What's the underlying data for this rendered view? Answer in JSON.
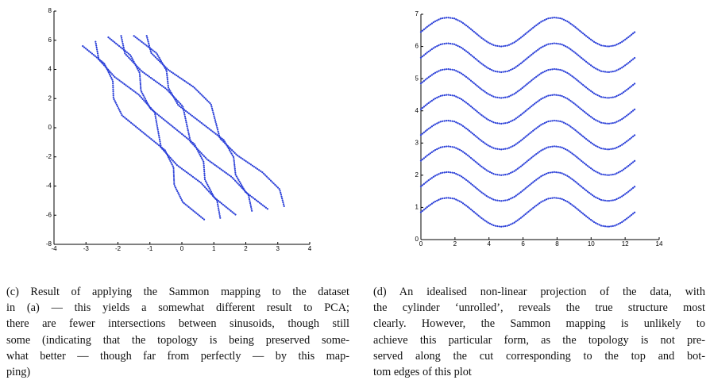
{
  "chart_data": [
    {
      "type": "line",
      "line_style": "dotted",
      "xlim": [
        -4,
        4
      ],
      "xticks": [
        -4,
        -3,
        -2,
        -1,
        0,
        1,
        2,
        3,
        4
      ],
      "ylim": [
        -8,
        8
      ],
      "yticks": [
        -8,
        -6,
        -4,
        -2,
        0,
        2,
        4,
        6,
        8
      ],
      "series": [
        {
          "color": "#2a3fd8",
          "x": [
            -3.1,
            -2.43,
            -2.16,
            -2.14,
            -1.87,
            -1.2,
            -0.53,
            -0.26,
            -0.24,
            0.03,
            0.7
          ],
          "values": [
            5.6,
            4.41,
            3.22,
            2.03,
            0.84,
            -0.35,
            -1.54,
            -2.73,
            -3.92,
            -5.11,
            -6.3
          ]
        },
        {
          "color": "#2a3fd8",
          "x": [
            -2.7,
            -2.6,
            -2.1,
            -1.35,
            -0.85,
            -0.75,
            -0.65,
            -0.15,
            0.6,
            1.1,
            1.2
          ],
          "values": [
            5.9,
            4.69,
            3.48,
            2.27,
            1.06,
            -0.15,
            -1.36,
            -2.57,
            -3.78,
            -4.99,
            -6.2
          ]
        },
        {
          "color": "#2a3fd8",
          "x": [
            -2.3,
            -1.61,
            -1.32,
            -1.28,
            -0.99,
            -0.3,
            0.39,
            0.68,
            0.72,
            1.01,
            1.7
          ],
          "values": [
            6.2,
            4.98,
            3.76,
            2.54,
            1.32,
            0.1,
            -1.12,
            -2.34,
            -3.56,
            -4.78,
            -6.0
          ]
        },
        {
          "color": "#2a3fd8",
          "x": [
            -1.9,
            -1.78,
            -1.26,
            -0.49,
            0.03,
            0.15,
            0.27,
            0.79,
            1.56,
            2.08,
            2.2
          ],
          "values": [
            6.3,
            5.09,
            3.88,
            2.67,
            1.46,
            0.25,
            -0.96,
            -2.17,
            -3.38,
            -4.59,
            -5.8
          ]
        },
        {
          "color": "#2a3fd8",
          "x": [
            -1.5,
            -0.79,
            -0.48,
            -0.42,
            -0.11,
            0.6,
            1.31,
            1.62,
            1.68,
            1.99,
            2.7
          ],
          "values": [
            6.3,
            5.11,
            3.92,
            2.73,
            1.54,
            0.35,
            -0.84,
            -2.03,
            -3.22,
            -4.41,
            -5.6
          ]
        },
        {
          "color": "#2a3fd8",
          "x": [
            -1.1,
            -0.96,
            -0.42,
            0.37,
            0.91,
            1.05,
            1.19,
            1.73,
            2.52,
            3.06,
            3.2
          ],
          "values": [
            6.3,
            5.13,
            3.96,
            2.79,
            1.62,
            0.45,
            -0.72,
            -1.89,
            -3.06,
            -4.23,
            -5.4
          ]
        }
      ],
      "caption_lines": [
        "(c) Result of applying the Sammon mapping to the dataset",
        "in (a) — this yields a somewhat different result to PCA;",
        "there are fewer intersections between sinusoids, though still",
        "some (indicating that the topology is being preserved some-",
        "what better — though far from perfectly — by this map-",
        "ping)"
      ]
    },
    {
      "type": "line",
      "line_style": "dotted",
      "xlim": [
        0,
        14
      ],
      "xticks": [
        0,
        2,
        4,
        6,
        8,
        10,
        12,
        14
      ],
      "ylim": [
        0,
        7
      ],
      "yticks": [
        0,
        1,
        2,
        3,
        4,
        5,
        6,
        7
      ],
      "x": [
        0,
        0.39,
        0.79,
        1.18,
        1.57,
        1.96,
        2.36,
        2.75,
        3.14,
        3.53,
        3.93,
        4.32,
        4.71,
        5.11,
        5.5,
        5.89,
        6.28,
        6.68,
        7.07,
        7.46,
        7.85,
        8.25,
        8.64,
        9.03,
        9.42,
        9.82,
        10.21,
        10.6,
        11.0,
        11.39,
        11.78,
        12.17,
        12.57
      ],
      "series": [
        {
          "color": "#2a3fd8",
          "values": [
            0.85,
            1.02,
            1.17,
            1.27,
            1.3,
            1.27,
            1.17,
            1.02,
            0.85,
            0.68,
            0.53,
            0.43,
            0.4,
            0.43,
            0.53,
            0.68,
            0.85,
            1.02,
            1.17,
            1.27,
            1.3,
            1.27,
            1.17,
            1.02,
            0.85,
            0.68,
            0.53,
            0.43,
            0.4,
            0.43,
            0.53,
            0.68,
            0.85
          ]
        },
        {
          "color": "#2a3fd8",
          "values": [
            1.65,
            1.82,
            1.97,
            2.07,
            2.1,
            2.07,
            1.97,
            1.82,
            1.65,
            1.48,
            1.33,
            1.23,
            1.2,
            1.23,
            1.33,
            1.48,
            1.65,
            1.82,
            1.97,
            2.07,
            2.1,
            2.07,
            1.97,
            1.82,
            1.65,
            1.48,
            1.33,
            1.23,
            1.2,
            1.23,
            1.33,
            1.48,
            1.65
          ]
        },
        {
          "color": "#2a3fd8",
          "values": [
            2.45,
            2.62,
            2.77,
            2.87,
            2.9,
            2.87,
            2.77,
            2.62,
            2.45,
            2.28,
            2.13,
            2.03,
            2,
            2.03,
            2.13,
            2.28,
            2.45,
            2.62,
            2.77,
            2.87,
            2.9,
            2.87,
            2.77,
            2.62,
            2.45,
            2.28,
            2.13,
            2.03,
            2,
            2.03,
            2.13,
            2.28,
            2.45
          ]
        },
        {
          "color": "#2a3fd8",
          "values": [
            3.25,
            3.42,
            3.57,
            3.67,
            3.7,
            3.67,
            3.57,
            3.42,
            3.25,
            3.08,
            2.93,
            2.83,
            2.8,
            2.83,
            2.93,
            3.08,
            3.25,
            3.42,
            3.57,
            3.67,
            3.7,
            3.67,
            3.57,
            3.42,
            3.25,
            3.08,
            2.93,
            2.83,
            2.8,
            2.83,
            2.93,
            3.08,
            3.25
          ]
        },
        {
          "color": "#2a3fd8",
          "values": [
            4.05,
            4.22,
            4.37,
            4.47,
            4.5,
            4.47,
            4.37,
            4.22,
            4.05,
            3.88,
            3.73,
            3.63,
            3.6,
            3.63,
            3.73,
            3.88,
            4.05,
            4.22,
            4.37,
            4.47,
            4.5,
            4.47,
            4.37,
            4.22,
            4.05,
            3.88,
            3.73,
            3.63,
            3.6,
            3.63,
            3.73,
            3.88,
            4.05
          ]
        },
        {
          "color": "#2a3fd8",
          "values": [
            4.85,
            5.02,
            5.17,
            5.27,
            5.3,
            5.27,
            5.17,
            5.02,
            4.85,
            4.68,
            4.53,
            4.43,
            4.4,
            4.43,
            4.53,
            4.68,
            4.85,
            5.02,
            5.17,
            5.27,
            5.3,
            5.27,
            5.17,
            5.02,
            4.85,
            4.68,
            4.53,
            4.43,
            4.4,
            4.43,
            4.53,
            4.68,
            4.85
          ]
        },
        {
          "color": "#2a3fd8",
          "values": [
            5.65,
            5.82,
            5.97,
            6.07,
            6.1,
            6.07,
            5.97,
            5.82,
            5.65,
            5.48,
            5.33,
            5.23,
            5.2,
            5.23,
            5.33,
            5.48,
            5.65,
            5.82,
            5.97,
            6.07,
            6.1,
            6.07,
            5.97,
            5.82,
            5.65,
            5.48,
            5.33,
            5.23,
            5.2,
            5.23,
            5.33,
            5.48,
            5.65
          ]
        },
        {
          "color": "#2a3fd8",
          "values": [
            6.45,
            6.62,
            6.77,
            6.87,
            6.9,
            6.87,
            6.77,
            6.62,
            6.45,
            6.28,
            6.13,
            6.03,
            6,
            6.03,
            6.13,
            6.28,
            6.45,
            6.62,
            6.77,
            6.87,
            6.9,
            6.87,
            6.77,
            6.62,
            6.45,
            6.28,
            6.13,
            6.03,
            6,
            6.03,
            6.13,
            6.28,
            6.45
          ]
        }
      ],
      "caption_lines": [
        "(d) An idealised non-linear projection of the data, with",
        "the cylinder ‘unrolled’, reveals the true structure most",
        "clearly.  However, the Sammon mapping is unlikely to",
        "achieve this particular form, as the topology is not pre-",
        "served along the cut corresponding to the top and bot-",
        "tom edges of this plot"
      ]
    }
  ]
}
